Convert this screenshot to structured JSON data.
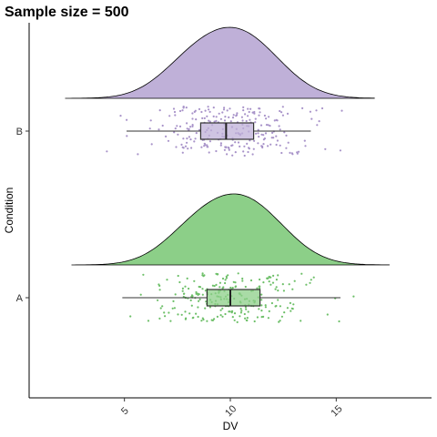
{
  "chart_data": {
    "type": "raincloud",
    "title": "Sample size = 500",
    "xlabel": "DV",
    "ylabel": "Condition",
    "xlim": [
      0.5,
      19.5
    ],
    "x_ticks": [
      5,
      10,
      15
    ],
    "x_tick_labels": [
      "5",
      "10",
      "15"
    ],
    "categories": [
      "A",
      "B"
    ],
    "grid": false,
    "groups": [
      {
        "name": "A",
        "color": "#8ccf88",
        "point_color": "#6dbf68",
        "n": 250,
        "density_range": [
          2.5,
          17.5
        ],
        "box": {
          "whisker_low": 4.9,
          "q1": 8.9,
          "median": 10.0,
          "q3": 11.4,
          "whisker_high": 15.2
        },
        "jitter_range": [
          4.3,
          15.9
        ]
      },
      {
        "name": "B",
        "color": "#bfb0d8",
        "point_color": "#a893c9",
        "n": 250,
        "density_range": [
          2.2,
          16.8
        ],
        "box": {
          "whisker_low": 5.1,
          "q1": 8.6,
          "median": 9.8,
          "q3": 11.1,
          "whisker_high": 13.8
        },
        "jitter_range": [
          4.0,
          15.3
        ]
      }
    ]
  }
}
